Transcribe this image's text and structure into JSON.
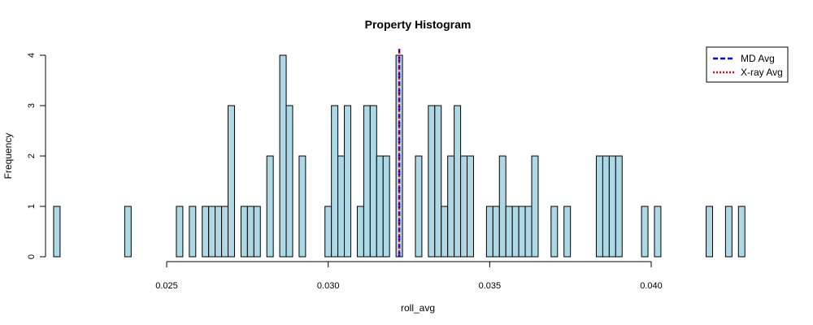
{
  "chart_data": {
    "type": "bar",
    "title": "Property Histogram",
    "xlabel": "roll_avg",
    "ylabel": "Frequency",
    "xlim": [
      0.02135,
      0.04375
    ],
    "ylim": [
      0,
      4
    ],
    "xticks": [
      0.025,
      0.03,
      0.035,
      0.04
    ],
    "xtick_labels": [
      "0.025",
      "0.030",
      "0.035",
      "0.040"
    ],
    "yticks": [
      0,
      1,
      2,
      3,
      4
    ],
    "ytick_labels": [
      "0",
      "1",
      "2",
      "3",
      "4"
    ],
    "bin_start": 0.0215,
    "bin_width": 0.0002,
    "values": [
      1,
      0,
      0,
      0,
      0,
      0,
      0,
      0,
      0,
      0,
      0,
      1,
      0,
      0,
      0,
      0,
      0,
      0,
      0,
      1,
      0,
      1,
      0,
      1,
      1,
      1,
      1,
      3,
      0,
      1,
      1,
      1,
      0,
      2,
      0,
      4,
      3,
      0,
      2,
      0,
      0,
      0,
      1,
      3,
      2,
      3,
      0,
      1,
      3,
      3,
      2,
      2,
      0,
      4,
      0,
      0,
      2,
      0,
      3,
      3,
      1,
      2,
      3,
      2,
      2,
      0,
      0,
      1,
      1,
      2,
      1,
      1,
      1,
      1,
      2,
      0,
      0,
      1,
      0,
      1,
      0,
      0,
      0,
      0,
      2,
      2,
      2,
      2,
      0,
      0,
      0,
      1,
      0,
      1,
      0,
      0,
      0,
      0,
      0,
      0,
      0,
      1,
      0,
      0,
      1,
      0,
      1,
      0,
      0,
      0,
      0,
      0,
      0,
      0,
      0,
      0,
      0,
      0,
      0,
      0,
      0,
      0,
      0,
      0,
      0,
      1
    ],
    "bar_fill": "#add8e6",
    "bar_stroke": "#000000",
    "grid": false,
    "vlines": [
      {
        "name": "MD Avg",
        "x": 0.0322,
        "color": "#0000ff",
        "style": "dashed"
      },
      {
        "name": "X-ray Avg",
        "x": 0.0322,
        "color": "#ff0000",
        "style": "dotted"
      }
    ],
    "legend": {
      "position": "top-right",
      "entries": [
        {
          "label": "MD Avg",
          "color": "#0000ff",
          "style": "dashed"
        },
        {
          "label": "X-ray Avg",
          "color": "#ff0000",
          "style": "dotted"
        }
      ]
    }
  }
}
